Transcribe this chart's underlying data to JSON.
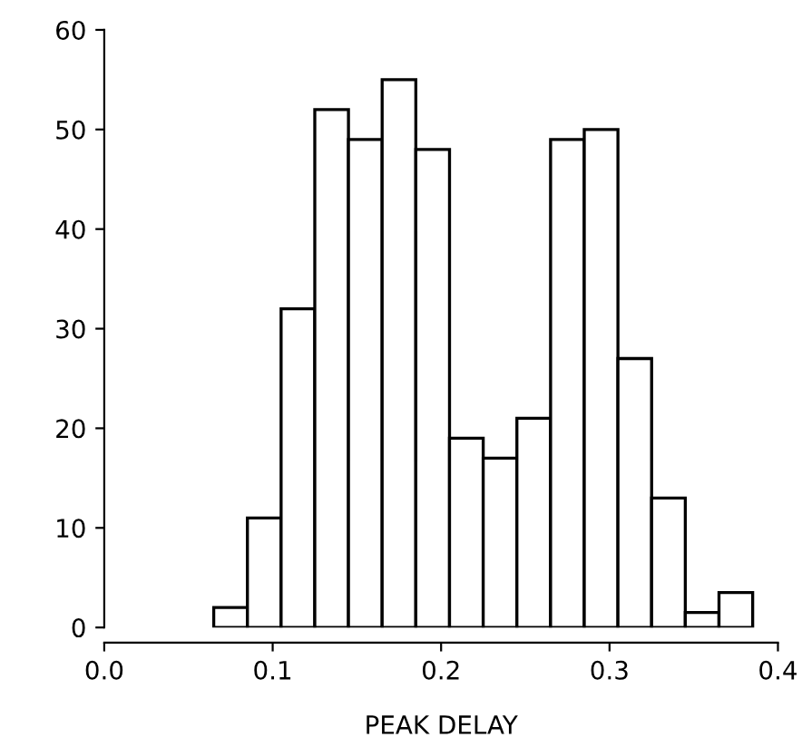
{
  "chart_data": {
    "type": "histogram",
    "xlabel": "PEAK DELAY",
    "bins": [
      0.065,
      0.085,
      0.105,
      0.125,
      0.145,
      0.165,
      0.185,
      0.205,
      0.225,
      0.245,
      0.265,
      0.285,
      0.305,
      0.325,
      0.345,
      0.365,
      0.385
    ],
    "values": [
      2,
      11,
      32,
      52,
      49,
      55,
      48,
      19,
      17,
      21,
      49,
      50,
      27,
      13,
      1.5,
      3.5
    ],
    "color": "#ffffff",
    "xlim": [
      0.0,
      0.4
    ],
    "xticks": [
      {
        "value": 0,
        "label": "0.0"
      },
      0.1,
      0.2,
      0.3,
      0.4
    ],
    "ylim": [
      0,
      60
    ],
    "yticks": [
      0,
      10,
      20,
      30,
      40,
      50,
      60
    ],
    "grid": false
  }
}
